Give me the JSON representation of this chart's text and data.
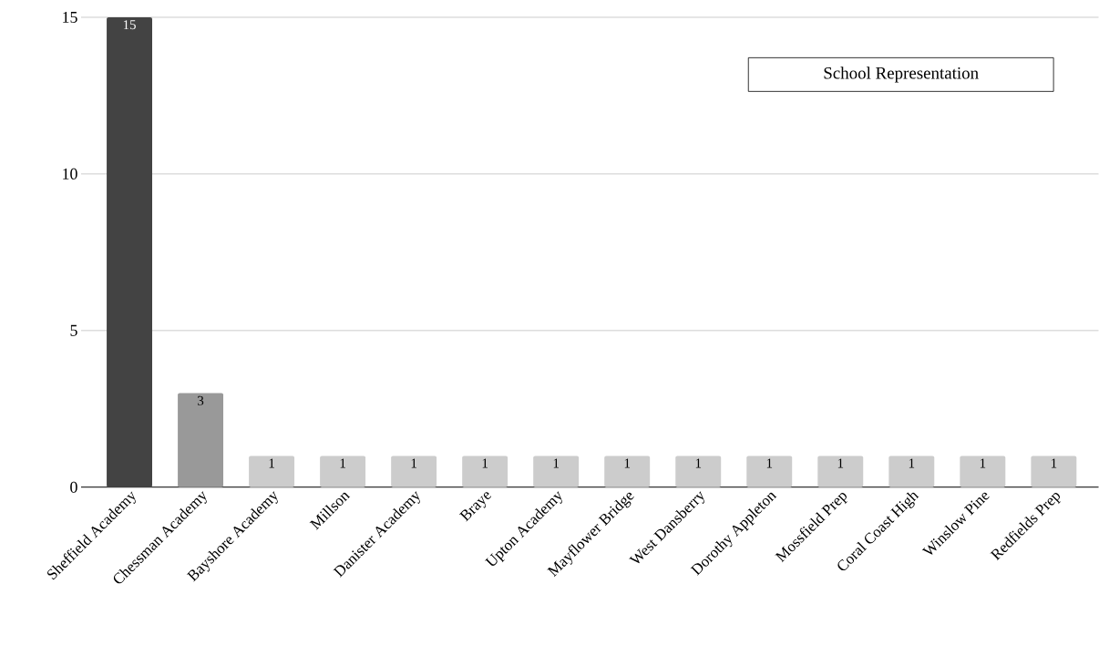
{
  "chart_data": {
    "type": "bar",
    "title": "School Representation",
    "categories": [
      "Sheffield Academy",
      "Chessman Academy",
      "Bayshore Academy",
      "Millson",
      "Danister Academy",
      "Braye",
      "Upton Academy",
      "Mayflower Bridge",
      "West Dansberry",
      "Dorothy Appleton",
      "Mossfield Prep",
      "Coral Coast High",
      "Winslow Pine",
      "Redfields Prep"
    ],
    "values": [
      15,
      3,
      1,
      1,
      1,
      1,
      1,
      1,
      1,
      1,
      1,
      1,
      1,
      1
    ],
    "colors": [
      "#434343",
      "#999999",
      "#cccccc",
      "#cccccc",
      "#cccccc",
      "#cccccc",
      "#cccccc",
      "#cccccc",
      "#cccccc",
      "#cccccc",
      "#cccccc",
      "#cccccc",
      "#cccccc",
      "#cccccc"
    ],
    "ylim": [
      0,
      15
    ],
    "yticks": [
      0,
      5,
      10,
      15
    ],
    "grid": "y",
    "data_labels": true
  }
}
